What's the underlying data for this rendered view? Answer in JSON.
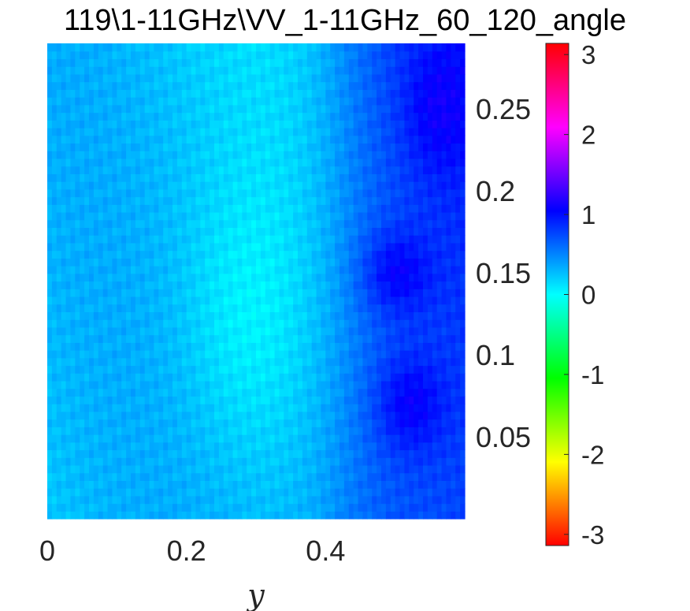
{
  "title": "119\\1-11GHz\\VV_1-11GHz_60_120_angle",
  "chart_data": {
    "type": "heatmap",
    "title": "119\\1-11GHz\\VV_1-11GHz_60_120_angle",
    "xlabel": "y",
    "ylabel": "",
    "xlim": [
      0,
      0.6
    ],
    "ylim": [
      0,
      0.29
    ],
    "x_ticks": [
      0,
      0.2,
      0.4
    ],
    "x_tick_labels": [
      "0",
      "0.2",
      "0.4"
    ],
    "y_ticks": [
      0.05,
      0.1,
      0.15,
      0.2,
      0.25
    ],
    "y_tick_labels": [
      "0.05",
      "0.1",
      "0.15",
      "0.2",
      "0.25"
    ],
    "y_axis_location": "right",
    "colorbar": {
      "colormap": "hsv",
      "clim": [
        -3.14,
        3.14
      ],
      "ticks": [
        3,
        2,
        1,
        0,
        -1,
        -2,
        -3
      ],
      "tick_labels": [
        "3",
        "2",
        "1",
        "0",
        "-1",
        "-2",
        "-3"
      ]
    },
    "grid": false,
    "field_summary": "phase angle mostly near 0 to 0.4 (cyan) on the left and center; rises to about 0.7 to 1.0 (blue) on the right side, strongest around y 0.48-0.58 at heights 0.03-0.17"
  }
}
